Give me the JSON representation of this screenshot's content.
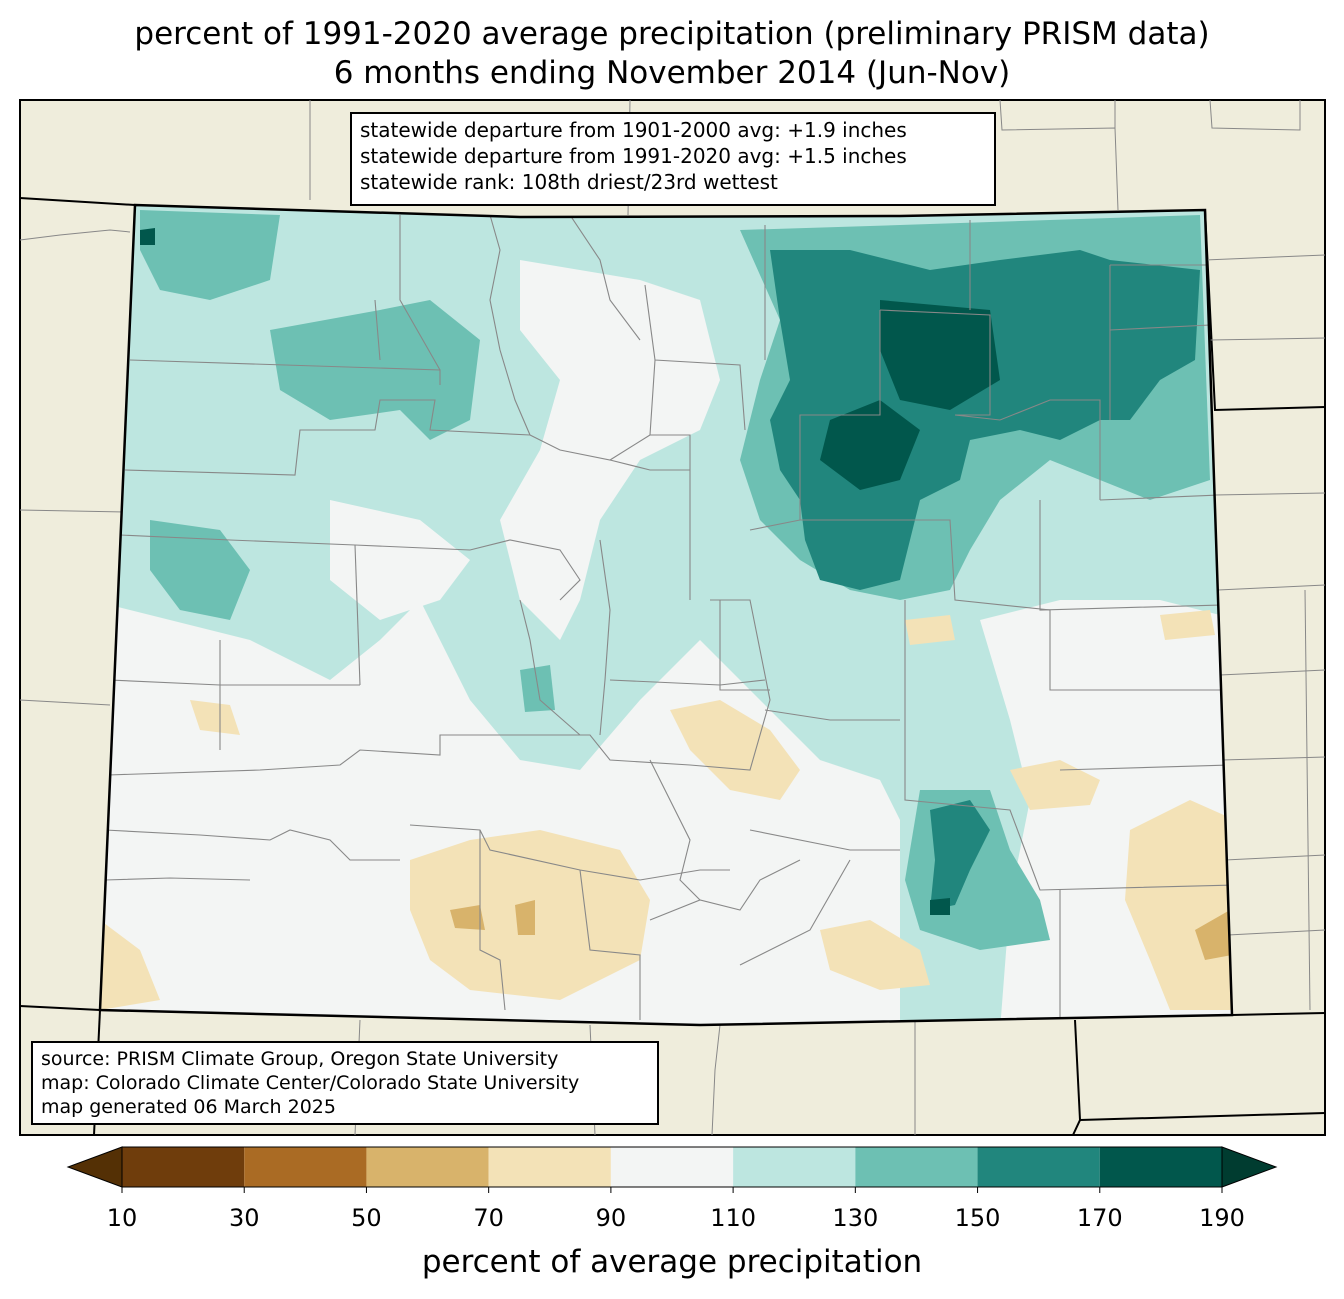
{
  "title": {
    "line1": "percent of 1991-2020 average precipitation (preliminary PRISM data)",
    "line2": "6 months ending November 2014 (Jun-Nov)"
  },
  "stats": {
    "line1": "statewide departure from 1901-2000 avg: +1.9 inches",
    "line2": "statewide departure from 1991-2020 avg: +1.5 inches",
    "line3": "statewide rank: 108th driest/23rd wettest"
  },
  "credits": {
    "line1": "source: PRISM Climate Group, Oregon State University",
    "line2": "map: Colorado Climate Center/Colorado State University",
    "line3": "map generated 06 March 2025"
  },
  "colorbar": {
    "label": "percent of average precipitation",
    "ticks": [
      "10",
      "30",
      "50",
      "70",
      "90",
      "110",
      "130",
      "150",
      "170",
      "190"
    ],
    "colors": [
      "#6f3d0c",
      "#aa6b24",
      "#d8b36b",
      "#f3e2b7",
      "#f3f5f4",
      "#bde6e0",
      "#6dc0b3",
      "#21867d",
      "#01574c"
    ],
    "under_color": "#543005",
    "over_color": "#003c30"
  },
  "colors": {
    "land_outside": "#efeddc",
    "county_lines": "#888888",
    "state_border": "#000000"
  }
}
